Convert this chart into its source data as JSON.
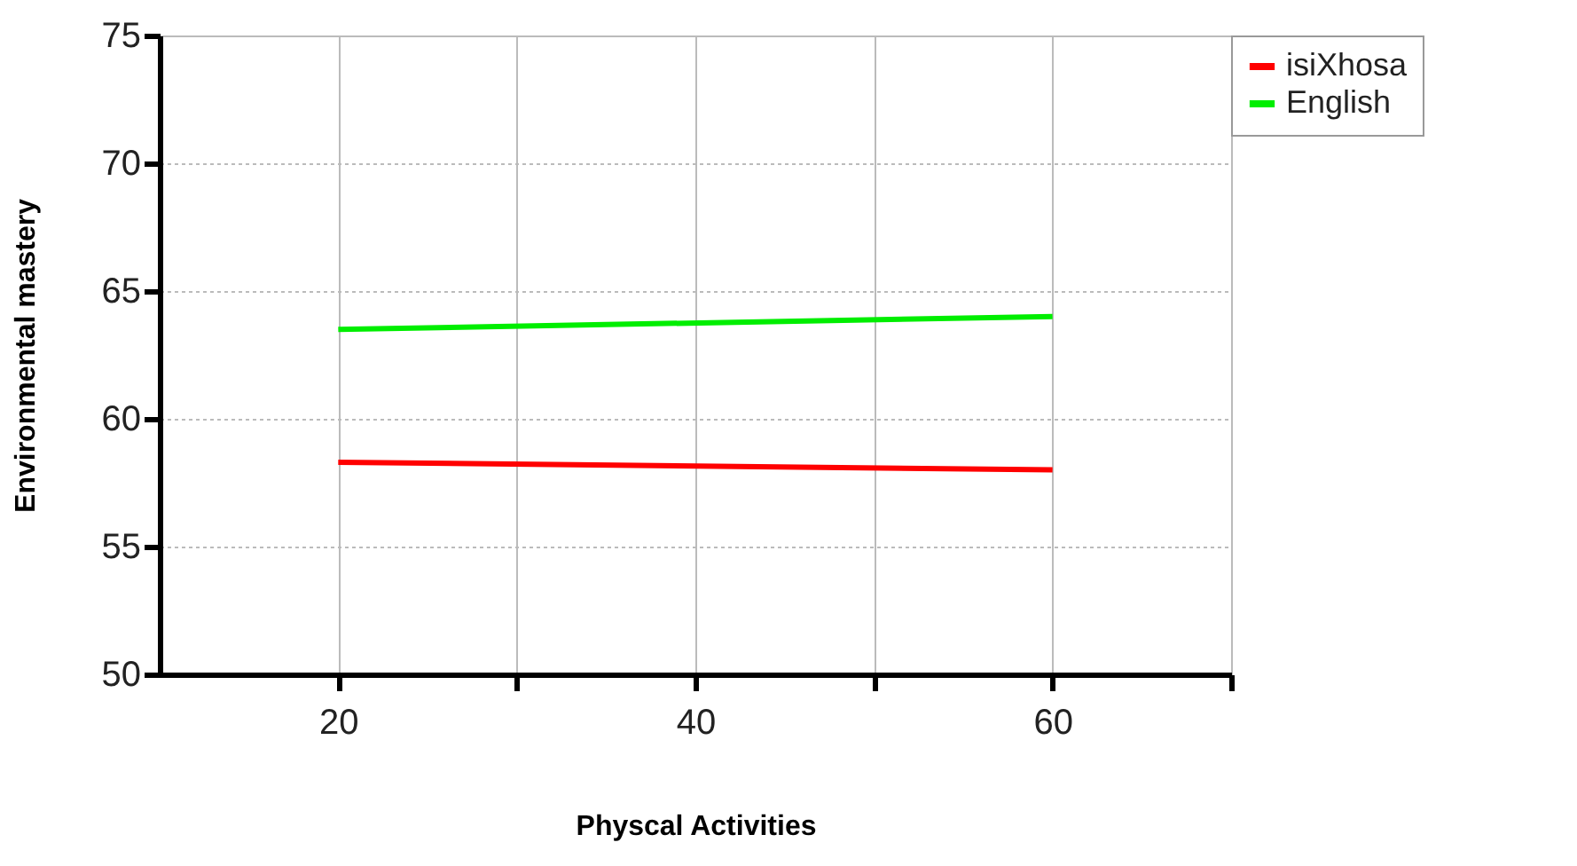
{
  "chart_data": {
    "type": "line",
    "xlabel": "Physcal Activities",
    "ylabel": "Environmental mastery",
    "x": [
      20,
      60
    ],
    "series": [
      {
        "name": "isiXhosa",
        "color": "#ff0000",
        "values": [
          58.3,
          58.0
        ]
      },
      {
        "name": "English",
        "color": "#00ee00",
        "values": [
          63.5,
          64.0
        ]
      }
    ],
    "xlim": [
      10,
      70
    ],
    "xticks": [
      20,
      {
        "value": 30,
        "label": null
      },
      40,
      {
        "value": 50,
        "label": null
      },
      60,
      {
        "value": 70,
        "label": null
      }
    ],
    "ylim": [
      50,
      75
    ],
    "yticks": [
      50,
      55,
      60,
      65,
      70,
      75
    ],
    "grid": true,
    "legend": "right",
    "marker": "none",
    "line_style": "solid"
  }
}
